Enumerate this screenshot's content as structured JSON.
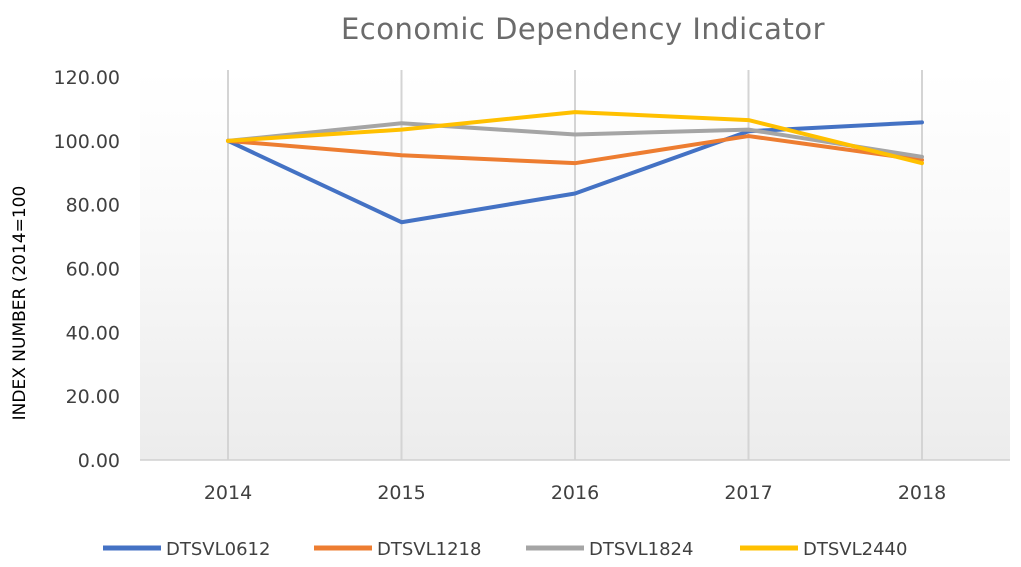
{
  "chart_data": {
    "type": "line",
    "title": "Economic Dependency Indicator",
    "xlabel": "",
    "ylabel": "INDEX NUMBER (2014=100",
    "categories": [
      "2014",
      "2015",
      "2016",
      "2017",
      "2018"
    ],
    "ylim": [
      0,
      120
    ],
    "yticks": [
      "0.00",
      "20.00",
      "40.00",
      "60.00",
      "80.00",
      "100.00",
      "120.00"
    ],
    "grid": "vertical",
    "legend": "bottom",
    "series": [
      {
        "name": "DTSVL0612",
        "color": "#4472C4",
        "values": [
          100,
          74.5,
          83.5,
          103,
          105.8
        ]
      },
      {
        "name": "DTSVL1218",
        "color": "#ED7D31",
        "values": [
          100,
          95.5,
          93,
          101.5,
          94
        ]
      },
      {
        "name": "DTSVL1824",
        "color": "#A5A5A5",
        "values": [
          100,
          105.5,
          102,
          103.5,
          95
        ]
      },
      {
        "name": "DTSVL2440",
        "color": "#FFC000",
        "values": [
          100,
          103.5,
          109,
          106.5,
          93
        ]
      }
    ]
  }
}
